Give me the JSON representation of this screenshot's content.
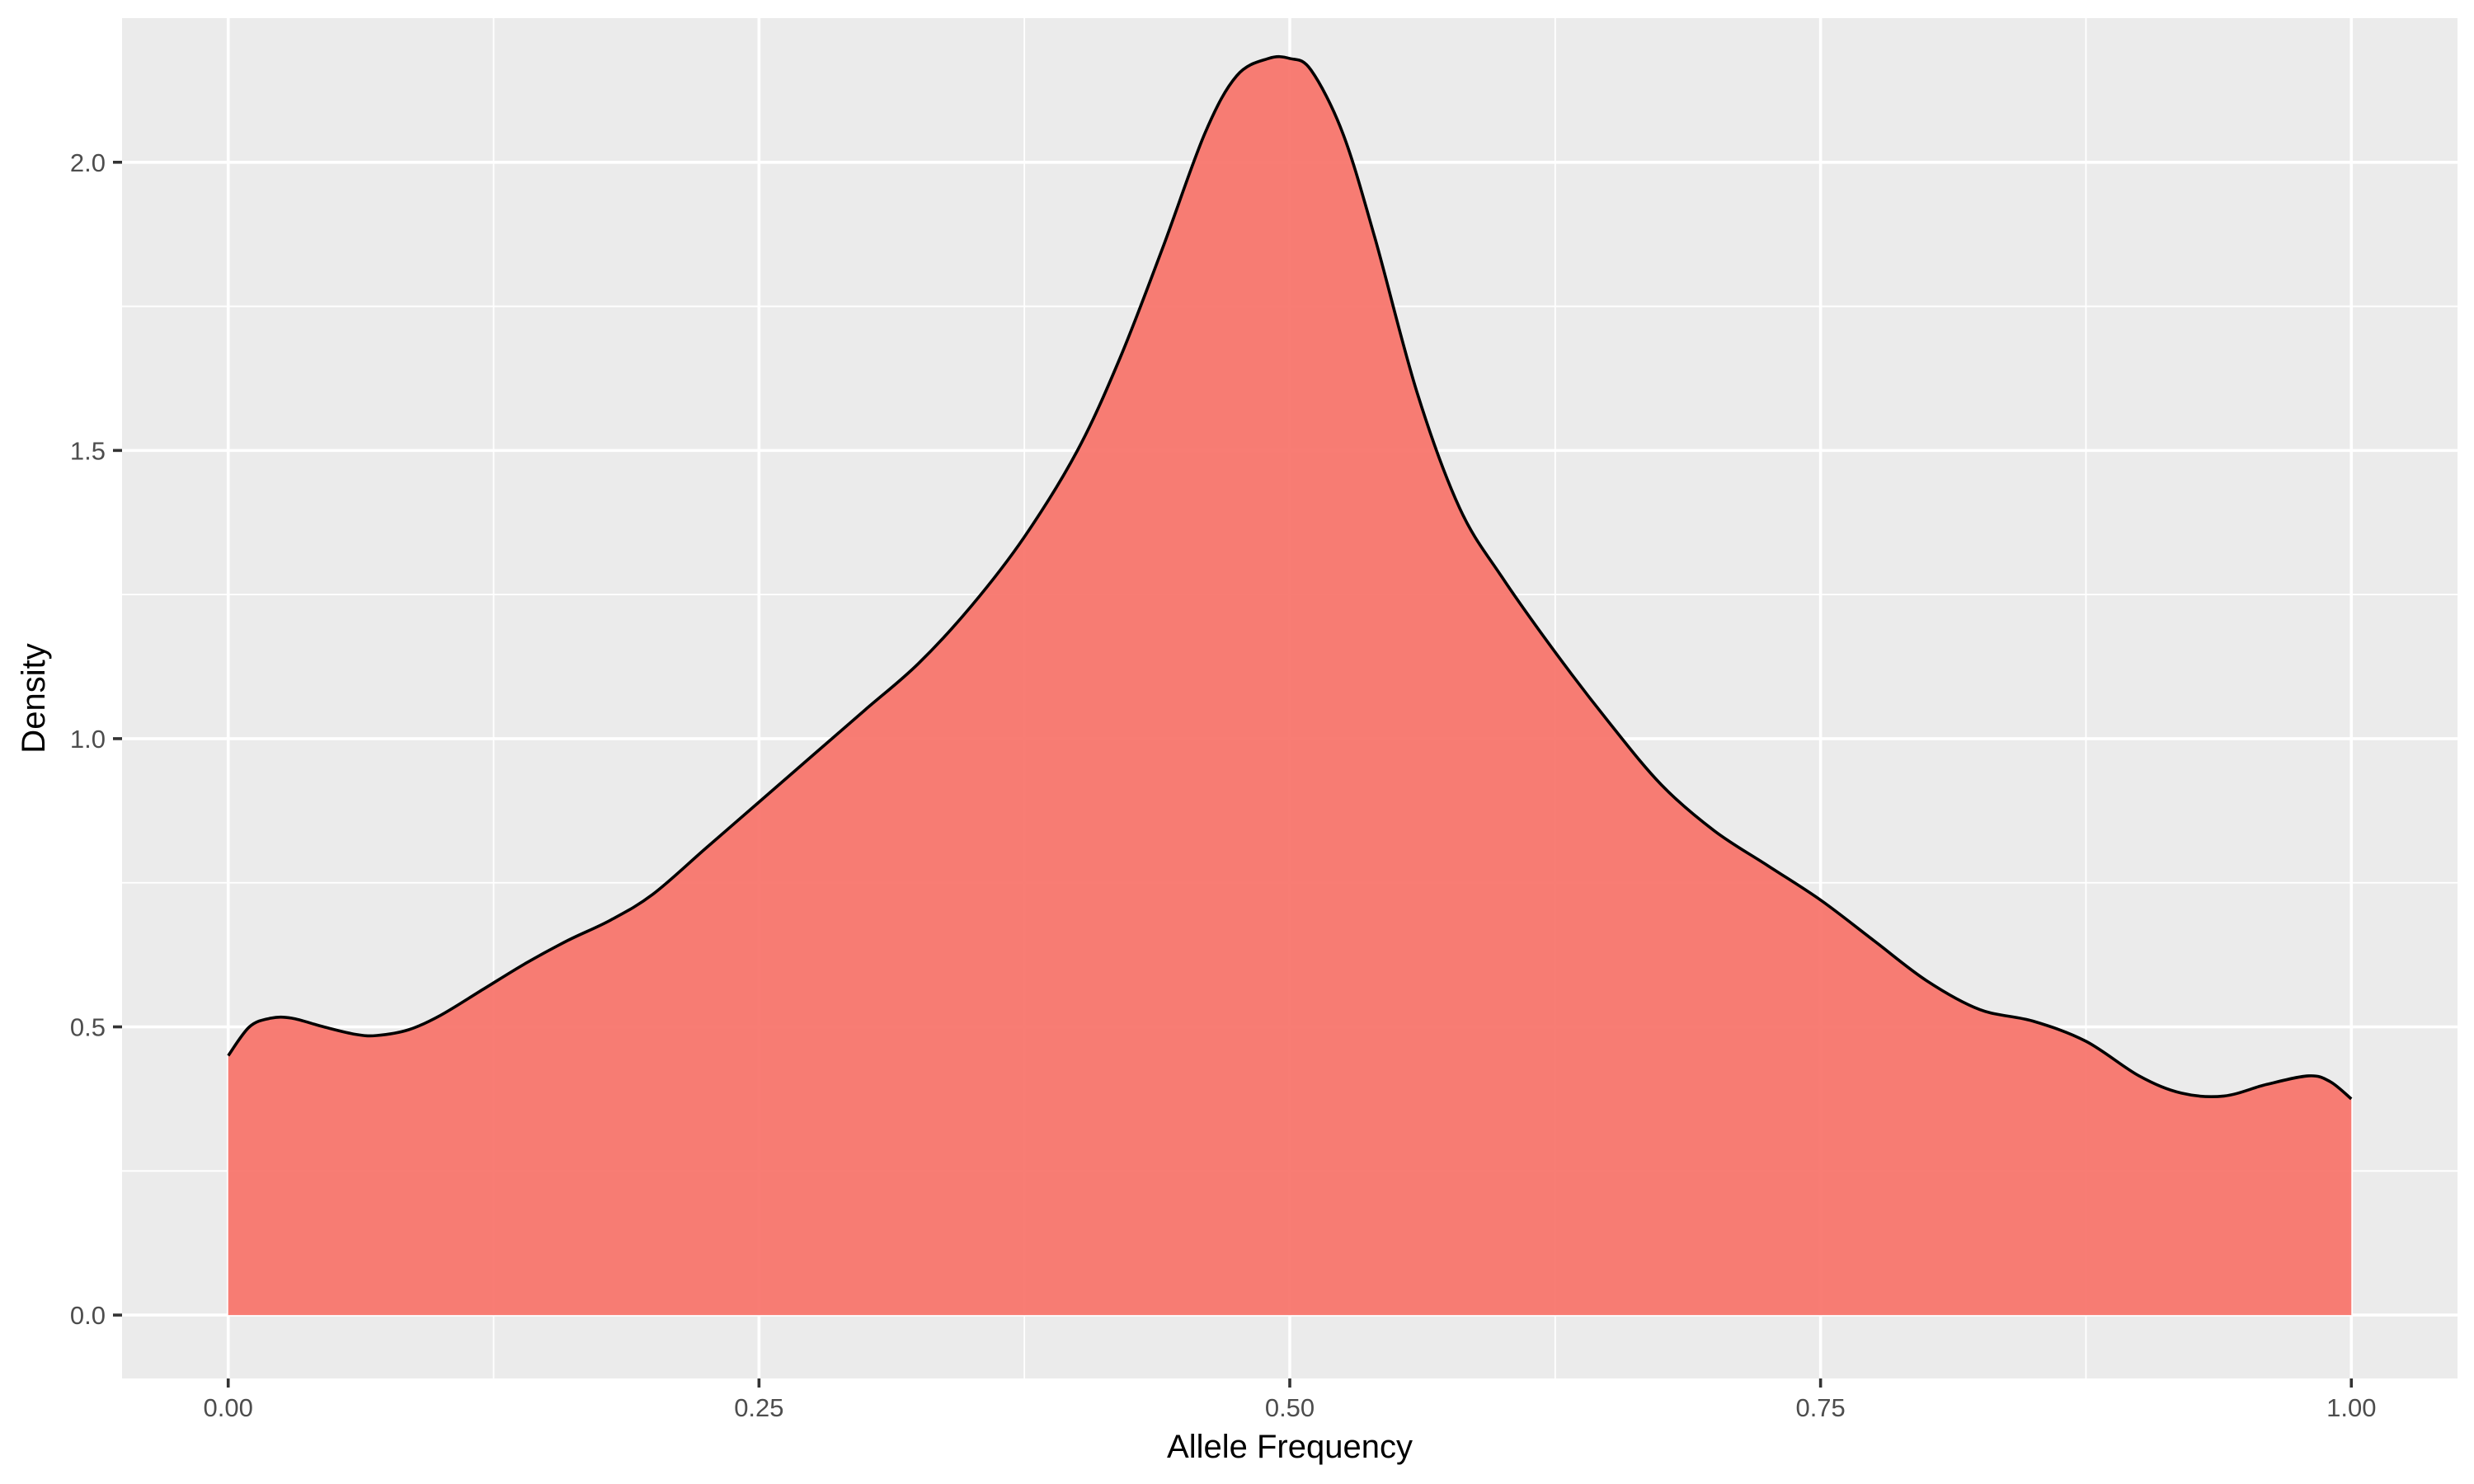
{
  "chart_data": {
    "type": "area",
    "title": "",
    "xlabel": "Allele Frequency",
    "ylabel": "Density",
    "xlim": [
      -0.05,
      1.05
    ],
    "ylim": [
      -0.11,
      2.25
    ],
    "x_ticks": [
      {
        "value": 0.0,
        "label": "0.00"
      },
      {
        "value": 0.25,
        "label": "0.25"
      },
      {
        "value": 0.5,
        "label": "0.50"
      },
      {
        "value": 0.75,
        "label": "0.75"
      },
      {
        "value": 1.0,
        "label": "1.00"
      }
    ],
    "y_ticks": [
      {
        "value": 0.0,
        "label": "0.0"
      },
      {
        "value": 0.5,
        "label": "0.5"
      },
      {
        "value": 1.0,
        "label": "1.0"
      },
      {
        "value": 1.5,
        "label": "1.5"
      },
      {
        "value": 2.0,
        "label": "2.0"
      }
    ],
    "grid": true,
    "legend": "none",
    "fill_color": "#F8766D",
    "fill_opacity": 0.95,
    "line_color": "#000000",
    "panel_background": "#EBEBEB",
    "grid_color": "#FFFFFF",
    "series": [
      {
        "x": [
          0.0,
          0.01,
          0.02,
          0.03,
          0.045,
          0.06,
          0.07,
          0.085,
          0.1,
          0.12,
          0.14,
          0.16,
          0.18,
          0.2,
          0.225,
          0.25,
          0.275,
          0.3,
          0.325,
          0.35,
          0.375,
          0.4,
          0.42,
          0.44,
          0.46,
          0.475,
          0.49,
          0.5,
          0.51,
          0.525,
          0.54,
          0.56,
          0.58,
          0.6,
          0.625,
          0.65,
          0.675,
          0.7,
          0.725,
          0.75,
          0.775,
          0.8,
          0.825,
          0.85,
          0.875,
          0.9,
          0.92,
          0.94,
          0.96,
          0.98,
          0.99,
          1.0
        ],
        "y": [
          0.45,
          0.5,
          0.515,
          0.515,
          0.5,
          0.487,
          0.485,
          0.495,
          0.52,
          0.565,
          0.61,
          0.65,
          0.685,
          0.73,
          0.81,
          0.89,
          0.97,
          1.05,
          1.13,
          1.23,
          1.35,
          1.5,
          1.66,
          1.85,
          2.05,
          2.15,
          2.18,
          2.18,
          2.16,
          2.05,
          1.87,
          1.6,
          1.4,
          1.28,
          1.15,
          1.03,
          0.92,
          0.84,
          0.78,
          0.72,
          0.65,
          0.58,
          0.53,
          0.51,
          0.475,
          0.415,
          0.385,
          0.38,
          0.4,
          0.415,
          0.405,
          0.375
        ]
      }
    ]
  }
}
